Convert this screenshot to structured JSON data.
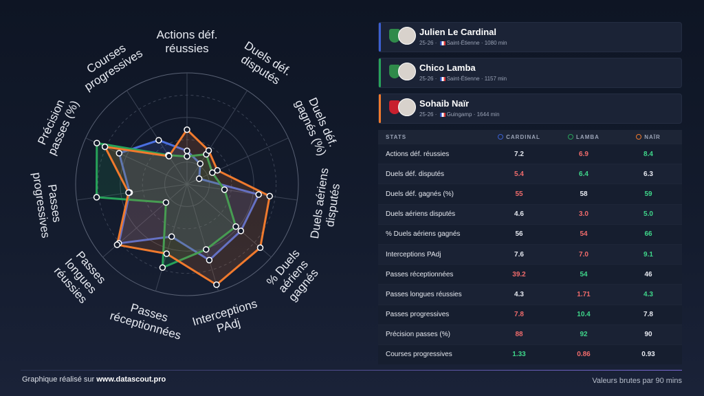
{
  "chart_data": {
    "type": "radar",
    "categories": [
      "Actions déf. réussies",
      "Duels déf. disputés",
      "Duels déf. gagnés (%)",
      "Duels aériens disputés",
      "% Duels aériens gagnés",
      "Interceptions PAdj",
      "Passes réceptionnées",
      "Passes longues réussies",
      "Passes progressives",
      "Précision passes (%)",
      "Courses progressives"
    ],
    "ylim": [
      0,
      100
    ],
    "yticks": [
      20,
      40,
      60,
      80,
      100
    ],
    "grid": true,
    "series": [
      {
        "color": "#4a6fe0",
        "values": [
          30,
          22,
          12,
          65,
          64,
          71,
          49,
          81,
          52,
          67,
          47
        ]
      },
      {
        "color": "#27a35a",
        "values": [
          25,
          32,
          25,
          34,
          58,
          61,
          78,
          25,
          82,
          89,
          31
        ]
      },
      {
        "color": "#f07a2d",
        "values": [
          49,
          36,
          30,
          75,
          87,
          94,
          65,
          83,
          53,
          81,
          30
        ]
      }
    ]
  },
  "players": [
    {
      "name": "Julien Le Cardinal",
      "season": "25-26",
      "club": "Saint-Étienne",
      "minutes": "1080 min",
      "color": "#3b5fd1"
    },
    {
      "name": "Chico Lamba",
      "season": "25-26",
      "club": "Saint-Étienne",
      "minutes": "1157 min",
      "color": "#27a35a"
    },
    {
      "name": "Sohaib Naïr",
      "season": "25-26",
      "club": "Guingamp",
      "minutes": "1644 min",
      "color": "#f07a2d"
    }
  ],
  "table": {
    "columns": [
      "STATS",
      "CARDINAL",
      "LAMBA",
      "NAÏR"
    ],
    "rows": [
      {
        "cells": [
          "Actions déf. réussies",
          "7.2",
          "6.9",
          "8.4"
        ],
        "colors": [
          "#e6e9f0",
          "#f06b6b",
          "#3fd68a"
        ]
      },
      {
        "cells": [
          "Duels déf. disputés",
          "5.4",
          "6.4",
          "6.3"
        ],
        "colors": [
          "#f06b6b",
          "#3fd68a",
          "#e6e9f0"
        ]
      },
      {
        "cells": [
          "Duels déf. gagnés (%)",
          "55",
          "58",
          "59"
        ],
        "colors": [
          "#f06b6b",
          "#e6e9f0",
          "#3fd68a"
        ]
      },
      {
        "cells": [
          "Duels aériens disputés",
          "4.6",
          "3.0",
          "5.0"
        ],
        "colors": [
          "#e6e9f0",
          "#f06b6b",
          "#3fd68a"
        ]
      },
      {
        "cells": [
          "% Duels aériens gagnés",
          "56",
          "54",
          "66"
        ],
        "colors": [
          "#e6e9f0",
          "#f06b6b",
          "#3fd68a"
        ]
      },
      {
        "cells": [
          "Interceptions PAdj",
          "7.6",
          "7.0",
          "9.1"
        ],
        "colors": [
          "#e6e9f0",
          "#f06b6b",
          "#3fd68a"
        ]
      },
      {
        "cells": [
          "Passes réceptionnées",
          "39.2",
          "54",
          "46"
        ],
        "colors": [
          "#f06b6b",
          "#3fd68a",
          "#e6e9f0"
        ]
      },
      {
        "cells": [
          "Passes longues réussies",
          "4.3",
          "1.71",
          "4.3"
        ],
        "colors": [
          "#e6e9f0",
          "#f06b6b",
          "#3fd68a"
        ]
      },
      {
        "cells": [
          "Passes progressives",
          "7.8",
          "10.4",
          "7.8"
        ],
        "colors": [
          "#f06b6b",
          "#3fd68a",
          "#e6e9f0"
        ]
      },
      {
        "cells": [
          "Précision passes (%)",
          "88",
          "92",
          "90"
        ],
        "colors": [
          "#f06b6b",
          "#3fd68a",
          "#e6e9f0"
        ]
      },
      {
        "cells": [
          "Courses progressives",
          "1.33",
          "0.86",
          "0.93"
        ],
        "colors": [
          "#3fd68a",
          "#f06b6b",
          "#e6e9f0"
        ]
      }
    ]
  },
  "footer": {
    "credit": "Graphique réalisé sur",
    "site": "www.datascout.pro",
    "note": "Valeurs brutes par 90 mins"
  }
}
